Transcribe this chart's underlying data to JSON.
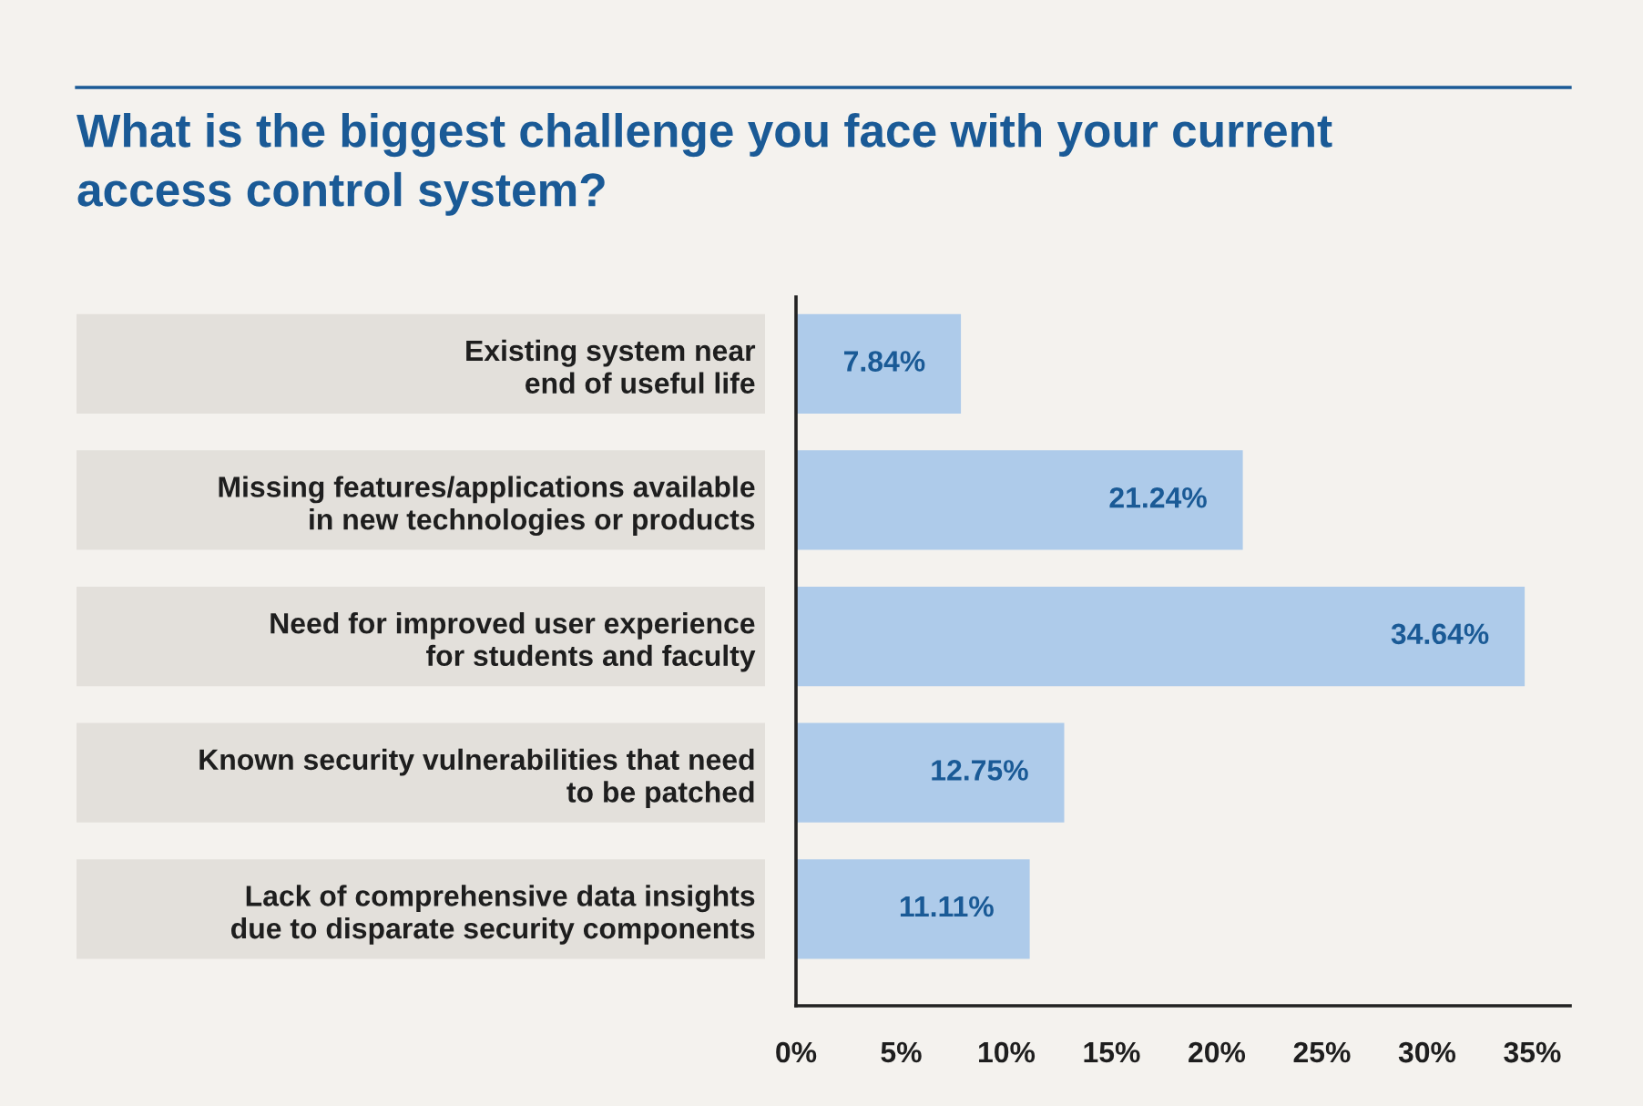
{
  "chart_data": {
    "type": "bar",
    "orientation": "horizontal",
    "title": "What is the biggest challenge you face with your current\naccess control system?",
    "categories": [
      "Existing system near\nend of useful life",
      "Missing features/applications available\nin new technologies or products",
      "Need for improved user experience\nfor students and faculty",
      "Known security vulnerabilities that need\nto be patched",
      "Lack of comprehensive data insights\ndue to disparate security components"
    ],
    "values": [
      7.84,
      21.24,
      34.64,
      12.75,
      11.11
    ],
    "value_labels": [
      "7.84%",
      "21.24%",
      "34.64%",
      "12.75%",
      "11.11%"
    ],
    "color": "#aecbea",
    "xlim": [
      0,
      36.8
    ],
    "xticks": [
      {
        "value": 0,
        "label": "0%"
      },
      {
        "value": 5,
        "label": "5%"
      },
      {
        "value": 10,
        "label": "10%"
      },
      {
        "value": 15,
        "label": "15%"
      },
      {
        "value": 20,
        "label": "20%"
      },
      {
        "value": 25,
        "label": "25%"
      },
      {
        "value": 30,
        "label": "30%"
      },
      {
        "value": 35,
        "label": "35%"
      }
    ],
    "grid": false,
    "legend": false
  }
}
